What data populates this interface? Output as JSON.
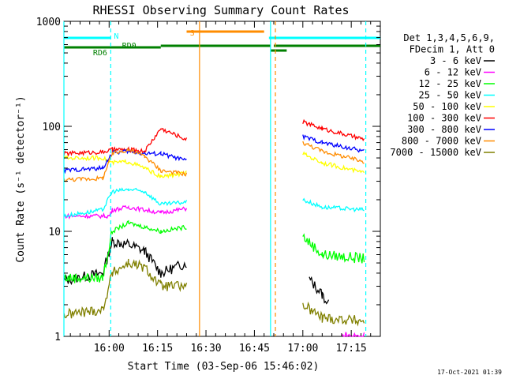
{
  "chart_data": {
    "type": "line",
    "title": "RHESSI Observing Summary Count Rates",
    "xlabel": "Start Time (03-Sep-06 15:46:02)",
    "ylabel": "Count Rate (s⁻¹ detector⁻¹)",
    "y_scale": "log",
    "ylim": [
      1,
      1000
    ],
    "xlim": [
      "15:46:02",
      "17:24"
    ],
    "x_tick_labels": [
      "16:00",
      "16:15",
      "16:30",
      "16:45",
      "17:00",
      "17:15"
    ],
    "y_tick_labels": [
      "1",
      "10",
      "100",
      "1000"
    ],
    "footer_timestamp": "17-Oct-2021 01:39",
    "legend": {
      "placement": "right",
      "header_lines": [
        "Det 1,3,4,5,6,9,",
        "FDecim 1, Att 0"
      ]
    },
    "flags": [
      {
        "label": "N",
        "color": "#00ffff"
      },
      {
        "label": "RD0",
        "color": "#008000"
      },
      {
        "label": "RD6",
        "color": "#008000"
      },
      {
        "label": "S",
        "color": "#ff8c00"
      }
    ],
    "series": [
      {
        "name": "3 - 6 keV",
        "color": "#000000",
        "values": [
          [
            0,
            3.4
          ],
          [
            12,
            4
          ],
          [
            15,
            8
          ],
          [
            20,
            7.5
          ],
          [
            25,
            6.5
          ],
          [
            30,
            4
          ],
          [
            38,
            5
          ],
          [
            52,
            0
          ],
          [
            64,
            0
          ],
          [
            76,
            3.5
          ],
          [
            80,
            2.5
          ],
          [
            82,
            2
          ]
        ]
      },
      {
        "name": "6 - 12 keV",
        "color": "#ff00ff",
        "values": [
          [
            0,
            14
          ],
          [
            14,
            14
          ],
          [
            15,
            16
          ],
          [
            20,
            17
          ],
          [
            25,
            16
          ],
          [
            30,
            15
          ],
          [
            38,
            16.5
          ],
          [
            52,
            0
          ],
          [
            64,
            0
          ],
          [
            86,
            1
          ],
          [
            93,
            1
          ]
        ]
      },
      {
        "name": "12 - 25 keV",
        "color": "#00ff00",
        "values": [
          [
            0,
            3.6
          ],
          [
            12,
            3.6
          ],
          [
            15,
            10
          ],
          [
            20,
            12
          ],
          [
            25,
            11
          ],
          [
            30,
            10
          ],
          [
            38,
            11
          ],
          [
            52,
            0
          ],
          [
            64,
            0
          ],
          [
            74,
            9
          ],
          [
            80,
            6
          ],
          [
            93,
            5.5
          ]
        ]
      },
      {
        "name": "25 - 50 keV",
        "color": "#00ffff",
        "values": [
          [
            0,
            14
          ],
          [
            12,
            16
          ],
          [
            15,
            24
          ],
          [
            20,
            25
          ],
          [
            25,
            24
          ],
          [
            30,
            18
          ],
          [
            38,
            19
          ],
          [
            52,
            0
          ],
          [
            64,
            0
          ],
          [
            74,
            20
          ],
          [
            80,
            17
          ],
          [
            93,
            16
          ]
        ]
      },
      {
        "name": "50 - 100 keV",
        "color": "#ffff00",
        "values": [
          [
            0,
            50
          ],
          [
            12,
            50
          ],
          [
            15,
            45
          ],
          [
            20,
            46
          ],
          [
            25,
            40
          ],
          [
            30,
            33
          ],
          [
            38,
            36
          ],
          [
            52,
            0
          ],
          [
            64,
            0
          ],
          [
            74,
            55
          ],
          [
            80,
            45
          ],
          [
            93,
            36
          ]
        ]
      },
      {
        "name": "100 - 300 keV",
        "color": "#ff0000",
        "values": [
          [
            0,
            55
          ],
          [
            12,
            57
          ],
          [
            15,
            60
          ],
          [
            20,
            60
          ],
          [
            25,
            58
          ],
          [
            30,
            95
          ],
          [
            38,
            75
          ],
          [
            52,
            0
          ],
          [
            64,
            0
          ],
          [
            74,
            110
          ],
          [
            80,
            95
          ],
          [
            93,
            75
          ]
        ]
      },
      {
        "name": "300 - 800 keV",
        "color": "#0000ff",
        "values": [
          [
            0,
            38
          ],
          [
            12,
            40
          ],
          [
            15,
            56
          ],
          [
            20,
            58
          ],
          [
            25,
            55
          ],
          [
            30,
            55
          ],
          [
            38,
            47
          ],
          [
            52,
            0
          ],
          [
            64,
            0
          ],
          [
            74,
            80
          ],
          [
            80,
            70
          ],
          [
            93,
            58
          ]
        ]
      },
      {
        "name": "800 - 7000 keV",
        "color": "#ff8c00",
        "values": [
          [
            0,
            31
          ],
          [
            12,
            32
          ],
          [
            15,
            55
          ],
          [
            20,
            60
          ],
          [
            25,
            52
          ],
          [
            30,
            38
          ],
          [
            38,
            35
          ],
          [
            52,
            0
          ],
          [
            64,
            0
          ],
          [
            74,
            70
          ],
          [
            80,
            58
          ],
          [
            93,
            46
          ]
        ]
      },
      {
        "name": "7000 - 15000 keV",
        "color": "#808000",
        "values": [
          [
            0,
            1.6
          ],
          [
            12,
            1.8
          ],
          [
            15,
            4
          ],
          [
            20,
            5
          ],
          [
            25,
            4.5
          ],
          [
            30,
            3
          ],
          [
            38,
            3
          ],
          [
            52,
            0
          ],
          [
            64,
            0
          ],
          [
            74,
            2
          ],
          [
            80,
            1.5
          ],
          [
            93,
            1.4
          ]
        ]
      }
    ]
  }
}
